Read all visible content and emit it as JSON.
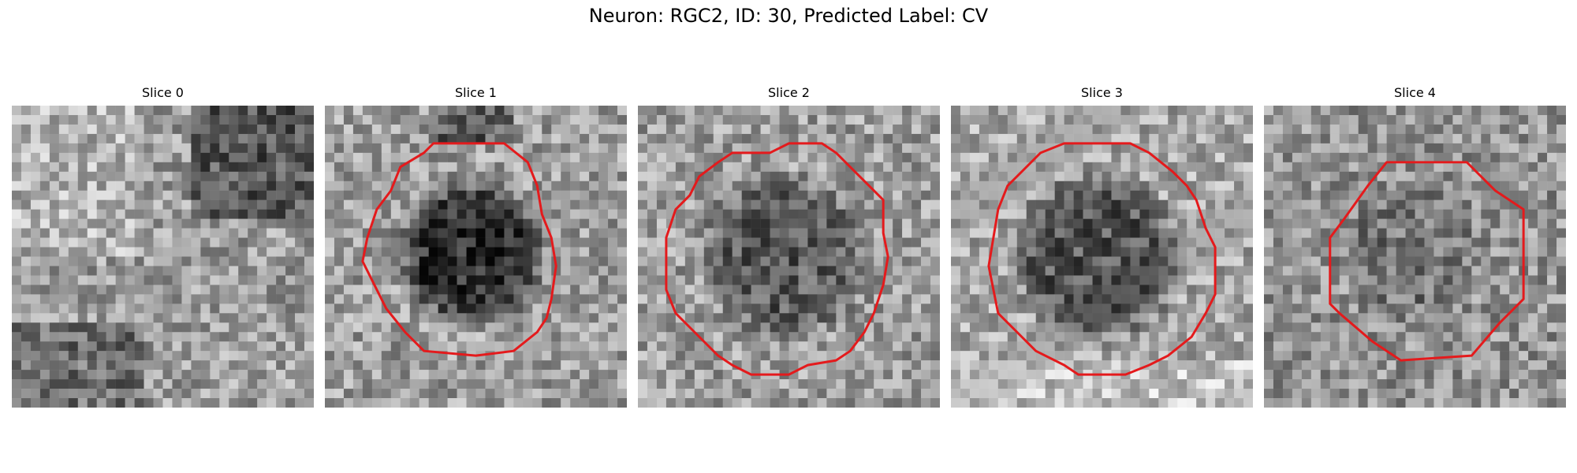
{
  "figure": {
    "title": "Neuron: RGC2, ID: 30, Predicted Label: CV",
    "contour_color": "#e41a1c",
    "panels": [
      {
        "title": "Slice 0",
        "has_contour": false,
        "image": "grayscale microscopy patch, 32x32 noise texture, darker top-right and lower-left regions"
      },
      {
        "title": "Slice 1",
        "has_contour": true,
        "image": "grayscale patch with dark circular cell body outlined in red"
      },
      {
        "title": "Slice 2",
        "has_contour": true,
        "image": "grayscale patch with medium-dark circular cell outlined in red"
      },
      {
        "title": "Slice 3",
        "has_contour": true,
        "image": "grayscale patch with medium-dark circular cell outlined in red"
      },
      {
        "title": "Slice 4",
        "has_contour": true,
        "image": "grayscale patch with textured octagonal region outlined in red"
      }
    ]
  }
}
